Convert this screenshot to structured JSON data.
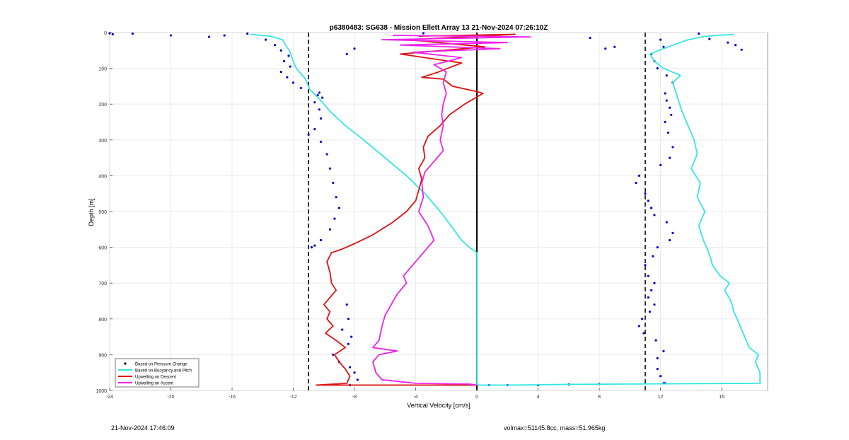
{
  "footer": {
    "timestamp": "21-Nov-2024 17:46:09",
    "stats": "volmax=51145.8cc, mass=51.965kg"
  },
  "chart_data": {
    "type": "line",
    "title": "p6380483: SG638 - Mission Ellett Array 13 21-Nov-2024 07:26:10Z",
    "xlabel": "Vertical Velocity [cm/s]",
    "ylabel": "Depth [m]",
    "xlim": [
      -24,
      19
    ],
    "ylim": [
      1000,
      0
    ],
    "y_reversed": true,
    "xticks": [
      -24,
      -20,
      -16,
      -12,
      -8,
      -4,
      0,
      4,
      8,
      12,
      16
    ],
    "yticks": [
      0,
      100,
      200,
      300,
      400,
      500,
      600,
      700,
      800,
      900,
      1000
    ],
    "grid": true,
    "legend_position": "bottom-left",
    "vertical_lines": [
      {
        "x": -11,
        "style": "dashed"
      },
      {
        "x": 11,
        "style": "dashed"
      },
      {
        "x": 0,
        "style": "solid"
      }
    ],
    "series": [
      {
        "name": "Based on Pressure Change",
        "style": "markers",
        "color": "#0000cc",
        "points": [
          [
            -24,
            2
          ],
          [
            -23.8,
            5
          ],
          [
            -22.5,
            3
          ],
          [
            -20,
            8
          ],
          [
            -17.5,
            12
          ],
          [
            -16.5,
            8
          ],
          [
            -15,
            3
          ],
          [
            -13.8,
            20
          ],
          [
            -13.2,
            35
          ],
          [
            -12.8,
            50
          ],
          [
            -12.3,
            65
          ],
          [
            -12.6,
            80
          ],
          [
            -12.2,
            95
          ],
          [
            -12.8,
            110
          ],
          [
            -12.4,
            125
          ],
          [
            -12.0,
            140
          ],
          [
            -11.5,
            155
          ],
          [
            -10.4,
            175
          ],
          [
            -10.6,
            195
          ],
          [
            -10.3,
            215
          ],
          [
            -10.2,
            240
          ],
          [
            -10.6,
            270
          ],
          [
            -11.0,
            285
          ],
          [
            -10.2,
            305
          ],
          [
            -9.8,
            340
          ],
          [
            -9.6,
            380
          ],
          [
            -9.4,
            420
          ],
          [
            -9.2,
            460
          ],
          [
            -9.0,
            490
          ],
          [
            -9.3,
            520
          ],
          [
            -9.6,
            550
          ],
          [
            -10.2,
            580
          ],
          [
            -10.6,
            595
          ],
          [
            -10.8,
            600
          ],
          [
            -3.5,
            2
          ],
          [
            -8,
            45
          ],
          [
            -8.5,
            60
          ],
          [
            -10.3,
            168
          ],
          [
            -10.1,
            182
          ],
          [
            14.5,
            3
          ],
          [
            15.2,
            18
          ],
          [
            16.4,
            28
          ],
          [
            16.9,
            35
          ],
          [
            17.3,
            48
          ],
          [
            9,
            40
          ],
          [
            8.4,
            45
          ],
          [
            7.4,
            15
          ],
          [
            12.0,
            20
          ],
          [
            12.2,
            40
          ],
          [
            11.4,
            60
          ],
          [
            11.6,
            80
          ],
          [
            11.8,
            100
          ],
          [
            12.4,
            120
          ],
          [
            12.8,
            140
          ],
          [
            12.3,
            170
          ],
          [
            12.4,
            190
          ],
          [
            12.6,
            210
          ],
          [
            12.7,
            230
          ],
          [
            12.3,
            250
          ],
          [
            12.5,
            280
          ],
          [
            12.8,
            320
          ],
          [
            12.6,
            350
          ],
          [
            12.0,
            370
          ],
          [
            10.6,
            400
          ],
          [
            10.4,
            420
          ],
          [
            11.0,
            450
          ],
          [
            11.2,
            470
          ],
          [
            11.4,
            490
          ],
          [
            11.6,
            510
          ],
          [
            12.4,
            530
          ],
          [
            12.8,
            560
          ],
          [
            12.6,
            580
          ],
          [
            11.8,
            600
          ],
          [
            11.5,
            625
          ],
          [
            11.0,
            650
          ],
          [
            11.2,
            680
          ],
          [
            11.6,
            700
          ],
          [
            11.4,
            720
          ],
          [
            11.2,
            740
          ],
          [
            11.6,
            760
          ],
          [
            11.3,
            780
          ],
          [
            10.8,
            800
          ],
          [
            10.6,
            820
          ],
          [
            10.9,
            840
          ],
          [
            11.7,
            860
          ],
          [
            12.2,
            890
          ],
          [
            11.8,
            910
          ],
          [
            11.8,
            940
          ],
          [
            12.0,
            960
          ],
          [
            12.3,
            980
          ],
          [
            -8.5,
            760
          ],
          [
            -8.4,
            800
          ],
          [
            -8.8,
            830
          ],
          [
            -8.2,
            850
          ],
          [
            -8.4,
            870
          ],
          [
            -9.4,
            900
          ],
          [
            -9.0,
            920
          ],
          [
            -8.3,
            935
          ],
          [
            -8.0,
            950
          ],
          [
            -7.8,
            970
          ],
          [
            -8.3,
            985
          ],
          [
            0.8,
            985
          ],
          [
            2,
            985
          ],
          [
            4,
            985
          ],
          [
            6,
            983
          ],
          [
            8,
            982
          ],
          [
            12.2,
            980
          ]
        ]
      },
      {
        "name": "Based on Buoyancy and Pitch",
        "style": "line",
        "color": "#33e6e6",
        "points": [
          [
            -14.8,
            5
          ],
          [
            -13.5,
            10
          ],
          [
            -12.7,
            20
          ],
          [
            -12.5,
            35
          ],
          [
            -12.2,
            55
          ],
          [
            -12.0,
            80
          ],
          [
            -11.8,
            100
          ],
          [
            -11.2,
            130
          ],
          [
            -10.9,
            160
          ],
          [
            -10.3,
            185
          ],
          [
            -9.6,
            220
          ],
          [
            -8.6,
            260
          ],
          [
            -7.4,
            300
          ],
          [
            -6.0,
            350
          ],
          [
            -4.6,
            400
          ],
          [
            -3.4,
            450
          ],
          [
            -2.4,
            500
          ],
          [
            -1.6,
            545
          ],
          [
            -1.0,
            580
          ],
          [
            -0.5,
            600
          ],
          [
            0,
            615
          ],
          [
            0,
            700
          ],
          [
            0,
            800
          ],
          [
            0,
            900
          ],
          [
            0,
            985
          ],
          [
            2,
            985
          ],
          [
            6,
            983
          ],
          [
            10,
            982
          ],
          [
            14,
            981
          ],
          [
            18.5,
            980
          ],
          [
            18.5,
            950
          ],
          [
            18.2,
            920
          ],
          [
            18.4,
            900
          ],
          [
            17.8,
            880
          ],
          [
            17.5,
            850
          ],
          [
            17.2,
            820
          ],
          [
            16.8,
            780
          ],
          [
            16.6,
            750
          ],
          [
            16.2,
            720
          ],
          [
            16.5,
            700
          ],
          [
            15.9,
            680
          ],
          [
            15.4,
            650
          ],
          [
            15.2,
            620
          ],
          [
            14.8,
            580
          ],
          [
            14.5,
            540
          ],
          [
            14.9,
            500
          ],
          [
            14.4,
            460
          ],
          [
            14.6,
            420
          ],
          [
            14.0,
            380
          ],
          [
            14.4,
            340
          ],
          [
            14.2,
            300
          ],
          [
            13.8,
            260
          ],
          [
            13.4,
            220
          ],
          [
            13.1,
            180
          ],
          [
            12.8,
            140
          ],
          [
            13.3,
            120
          ],
          [
            12.2,
            100
          ],
          [
            11.6,
            80
          ],
          [
            11.3,
            60
          ],
          [
            12.5,
            40
          ],
          [
            13.8,
            20
          ],
          [
            15,
            10
          ],
          [
            16.8,
            5
          ]
        ]
      },
      {
        "name": "Upwelling on Descent",
        "style": "line",
        "color": "#dd1111",
        "points": [
          [
            -3.8,
            10
          ],
          [
            2.5,
            5
          ],
          [
            -4.5,
            20
          ],
          [
            0.5,
            40
          ],
          [
            -5,
            60
          ],
          [
            -1,
            85
          ],
          [
            -2.5,
            110
          ],
          [
            -3.6,
            125
          ],
          [
            -2.2,
            130
          ],
          [
            -1.6,
            150
          ],
          [
            0,
            165
          ],
          [
            0.4,
            170
          ],
          [
            -0.8,
            200
          ],
          [
            -1.8,
            230
          ],
          [
            -2.4,
            260
          ],
          [
            -3.2,
            290
          ],
          [
            -3.5,
            320
          ],
          [
            -3.4,
            350
          ],
          [
            -3.8,
            380
          ],
          [
            -3.6,
            410
          ],
          [
            -3.8,
            440
          ],
          [
            -4.0,
            470
          ],
          [
            -4.6,
            500
          ],
          [
            -5.5,
            530
          ],
          [
            -6.8,
            565
          ],
          [
            -8.0,
            590
          ],
          [
            -8.8,
            605
          ],
          [
            -9.5,
            615
          ],
          [
            -9.8,
            640
          ],
          [
            -9.6,
            670
          ],
          [
            -9.5,
            700
          ],
          [
            -9.2,
            720
          ],
          [
            -9.6,
            740
          ],
          [
            -10.0,
            760
          ],
          [
            -9.6,
            780
          ],
          [
            -9.8,
            800
          ],
          [
            -9.4,
            820
          ],
          [
            -9.9,
            840
          ],
          [
            -9.2,
            860
          ],
          [
            -8.6,
            880
          ],
          [
            -9.3,
            900
          ],
          [
            -9.0,
            920
          ],
          [
            -8.6,
            940
          ],
          [
            -8.3,
            960
          ],
          [
            -8.5,
            980
          ],
          [
            -10.5,
            985
          ],
          [
            -4.0,
            985
          ],
          [
            0,
            985
          ]
        ]
      },
      {
        "name": "Upwelling on Ascent",
        "style": "line",
        "color": "#ee22ee",
        "points": [
          [
            -5.5,
            8
          ],
          [
            3.5,
            12
          ],
          [
            -6.2,
            20
          ],
          [
            2.0,
            28
          ],
          [
            -5.0,
            35
          ],
          [
            1.5,
            45
          ],
          [
            -4.2,
            55
          ],
          [
            -1.0,
            70
          ],
          [
            -2.8,
            90
          ],
          [
            -2.0,
            110
          ],
          [
            -2.2,
            140
          ],
          [
            -2.0,
            170
          ],
          [
            -2.2,
            200
          ],
          [
            -2.3,
            230
          ],
          [
            -2.2,
            260
          ],
          [
            -2.4,
            300
          ],
          [
            -2.2,
            330
          ],
          [
            -2.8,
            360
          ],
          [
            -3.4,
            390
          ],
          [
            -3.6,
            420
          ],
          [
            -3.5,
            460
          ],
          [
            -3.8,
            500
          ],
          [
            -3.2,
            540
          ],
          [
            -2.8,
            580
          ],
          [
            -3.6,
            620
          ],
          [
            -4.2,
            650
          ],
          [
            -4.8,
            680
          ],
          [
            -4.6,
            700
          ],
          [
            -5.2,
            730
          ],
          [
            -5.6,
            760
          ],
          [
            -6.0,
            790
          ],
          [
            -6.2,
            820
          ],
          [
            -6.4,
            860
          ],
          [
            -6.8,
            880
          ],
          [
            -5.2,
            890
          ],
          [
            -6.4,
            900
          ],
          [
            -6.8,
            920
          ],
          [
            -6.6,
            950
          ],
          [
            -6.2,
            970
          ],
          [
            -4.0,
            980
          ],
          [
            -0.5,
            982
          ],
          [
            0,
            985
          ]
        ]
      }
    ]
  }
}
